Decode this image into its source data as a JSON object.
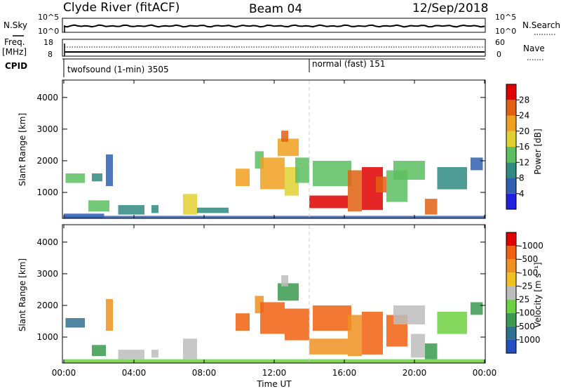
{
  "header": {
    "station": "Clyde River (fitACF)",
    "beam": "Beam 04",
    "date": "12/Sep/2018"
  },
  "noise_panel": {
    "left_label": "N.Sky",
    "right_label": "N.Search",
    "left_ticks": [
      "10^5",
      "10^0"
    ],
    "right_ticks": [
      "10^5",
      "10^0"
    ]
  },
  "freq_panel": {
    "left_label_1": "Freq.",
    "left_label_2": "[MHz]",
    "right_label": "Nave",
    "left_ticks": [
      "18",
      "8"
    ],
    "right_ticks": [
      "60",
      "0"
    ]
  },
  "cpid_panel": {
    "label": "CPID",
    "modes": [
      {
        "name": "twofsound (1-min) 3505",
        "start_hour": 0
      },
      {
        "name": "normal (fast) 151",
        "start_hour": 14
      }
    ]
  },
  "x_axis": {
    "label": "Time UT",
    "tick_labels": [
      "00:00",
      "04:00",
      "08:00",
      "12:00",
      "16:00",
      "20:00",
      "00:00"
    ],
    "range_hours": [
      0,
      24
    ]
  },
  "chart_data": [
    {
      "type": "heatmap",
      "name": "power",
      "ylabel": "Slant Range [km]",
      "yticks": [
        1000,
        2000,
        3000,
        4000
      ],
      "ylim": [
        180,
        4550
      ],
      "colorbar_label": "Power [dB]",
      "colorbar_ticks": [
        "4",
        "8",
        "12",
        "16",
        "20",
        "24",
        "28"
      ],
      "colorbar_colors": [
        "#1f20e0",
        "#3060b0",
        "#2f8a80",
        "#5cc060",
        "#e0d030",
        "#f0a020",
        "#e06010",
        "#e00000"
      ],
      "regions": [
        {
          "t": [
            0.0,
            2.3
          ],
          "r": [
            180,
            330
          ],
          "level": 1
        },
        {
          "t": [
            0.0,
            24.0
          ],
          "r": [
            180,
            260
          ],
          "level": 1
        },
        {
          "t": [
            0.1,
            1.2
          ],
          "r": [
            1300,
            1600
          ],
          "level": 3
        },
        {
          "t": [
            1.6,
            2.2
          ],
          "r": [
            1350,
            1600
          ],
          "level": 2
        },
        {
          "t": [
            1.4,
            2.6
          ],
          "r": [
            400,
            750
          ],
          "level": 3
        },
        {
          "t": [
            2.4,
            2.8
          ],
          "r": [
            1200,
            2200
          ],
          "level": 1
        },
        {
          "t": [
            3.1,
            4.6
          ],
          "r": [
            300,
            600
          ],
          "level": 2
        },
        {
          "t": [
            5.0,
            5.4
          ],
          "r": [
            350,
            600
          ],
          "level": 2
        },
        {
          "t": [
            6.8,
            7.6
          ],
          "r": [
            300,
            950
          ],
          "level": 4
        },
        {
          "t": [
            7.6,
            9.4
          ],
          "r": [
            350,
            520
          ],
          "level": 2
        },
        {
          "t": [
            9.8,
            10.6
          ],
          "r": [
            1200,
            1750
          ],
          "level": 5
        },
        {
          "t": [
            10.9,
            11.4
          ],
          "r": [
            1750,
            2300
          ],
          "level": 3
        },
        {
          "t": [
            11.2,
            12.6
          ],
          "r": [
            1100,
            2100
          ],
          "level": 5
        },
        {
          "t": [
            12.2,
            13.4
          ],
          "r": [
            2150,
            2700
          ],
          "level": 5
        },
        {
          "t": [
            12.4,
            12.8
          ],
          "r": [
            2600,
            2950
          ],
          "level": 6
        },
        {
          "t": [
            12.6,
            13.4
          ],
          "r": [
            900,
            1800
          ],
          "level": 4
        },
        {
          "t": [
            13.2,
            14.0
          ],
          "r": [
            1300,
            2100
          ],
          "level": 3
        },
        {
          "t": [
            14.0,
            16.2
          ],
          "r": [
            500,
            900
          ],
          "level": 7
        },
        {
          "t": [
            14.2,
            16.4
          ],
          "r": [
            1200,
            2000
          ],
          "level": 3
        },
        {
          "t": [
            16.2,
            17.0
          ],
          "r": [
            400,
            1700
          ],
          "level": 6
        },
        {
          "t": [
            17.0,
            18.2
          ],
          "r": [
            450,
            1800
          ],
          "level": 7
        },
        {
          "t": [
            17.8,
            18.4
          ],
          "r": [
            1000,
            1500
          ],
          "level": 6
        },
        {
          "t": [
            18.4,
            19.6
          ],
          "r": [
            700,
            1700
          ],
          "level": 3
        },
        {
          "t": [
            18.8,
            20.6
          ],
          "r": [
            1400,
            2000
          ],
          "level": 3
        },
        {
          "t": [
            20.6,
            21.3
          ],
          "r": [
            300,
            800
          ],
          "level": 6
        },
        {
          "t": [
            21.3,
            23.0
          ],
          "r": [
            1100,
            1800
          ],
          "level": 2
        },
        {
          "t": [
            23.2,
            23.9
          ],
          "r": [
            1700,
            2100
          ],
          "level": 1
        }
      ]
    },
    {
      "type": "heatmap",
      "name": "velocity",
      "ylabel": "Slant Range [km]",
      "yticks": [
        1000,
        2000,
        3000,
        4000
      ],
      "ylim": [
        180,
        4550
      ],
      "colorbar_label": "Velocity [m s⁻¹]",
      "colorbar_ticks": [
        "1000",
        "500",
        "100",
        "25",
        "-25",
        "-100",
        "-500",
        "-1000"
      ],
      "colorbar_colors": [
        "#1f4fc0",
        "#2f7090",
        "#3a9a50",
        "#6cd040",
        "#bdbdbd",
        "#f0c020",
        "#f09020",
        "#f06010",
        "#e00000"
      ],
      "regions": [
        {
          "t": [
            0.0,
            24.0
          ],
          "r": [
            180,
            300
          ],
          "level": 3
        },
        {
          "t": [
            0.1,
            1.2
          ],
          "r": [
            1300,
            1600
          ],
          "level": 1
        },
        {
          "t": [
            1.6,
            2.4
          ],
          "r": [
            400,
            750
          ],
          "level": 2
        },
        {
          "t": [
            2.4,
            2.8
          ],
          "r": [
            1200,
            2200
          ],
          "level": 6
        },
        {
          "t": [
            3.1,
            4.6
          ],
          "r": [
            300,
            600
          ],
          "level": 4
        },
        {
          "t": [
            5.0,
            5.4
          ],
          "r": [
            350,
            600
          ],
          "level": 4
        },
        {
          "t": [
            6.8,
            7.6
          ],
          "r": [
            300,
            950
          ],
          "level": 4
        },
        {
          "t": [
            9.8,
            10.6
          ],
          "r": [
            1200,
            1750
          ],
          "level": 7
        },
        {
          "t": [
            10.9,
            11.4
          ],
          "r": [
            1750,
            2300
          ],
          "level": 6
        },
        {
          "t": [
            11.2,
            12.6
          ],
          "r": [
            1100,
            2100
          ],
          "level": 7
        },
        {
          "t": [
            12.2,
            13.4
          ],
          "r": [
            2150,
            2700
          ],
          "level": 2
        },
        {
          "t": [
            12.4,
            12.8
          ],
          "r": [
            2600,
            2950
          ],
          "level": 4
        },
        {
          "t": [
            12.6,
            14.0
          ],
          "r": [
            900,
            1900
          ],
          "level": 7
        },
        {
          "t": [
            14.0,
            16.2
          ],
          "r": [
            450,
            950
          ],
          "level": 6
        },
        {
          "t": [
            14.2,
            16.4
          ],
          "r": [
            1200,
            2000
          ],
          "level": 7
        },
        {
          "t": [
            16.2,
            17.0
          ],
          "r": [
            400,
            1700
          ],
          "level": 6
        },
        {
          "t": [
            17.0,
            18.2
          ],
          "r": [
            450,
            1800
          ],
          "level": 7
        },
        {
          "t": [
            18.4,
            19.6
          ],
          "r": [
            700,
            1700
          ],
          "level": 7
        },
        {
          "t": [
            18.8,
            20.6
          ],
          "r": [
            1400,
            2000
          ],
          "level": 4
        },
        {
          "t": [
            19.8,
            20.6
          ],
          "r": [
            350,
            1100
          ],
          "level": 4
        },
        {
          "t": [
            20.6,
            21.3
          ],
          "r": [
            300,
            800
          ],
          "level": 2
        },
        {
          "t": [
            21.3,
            23.0
          ],
          "r": [
            1100,
            1800
          ],
          "level": 3
        },
        {
          "t": [
            23.2,
            23.9
          ],
          "r": [
            1700,
            2100
          ],
          "level": 2
        }
      ]
    }
  ]
}
